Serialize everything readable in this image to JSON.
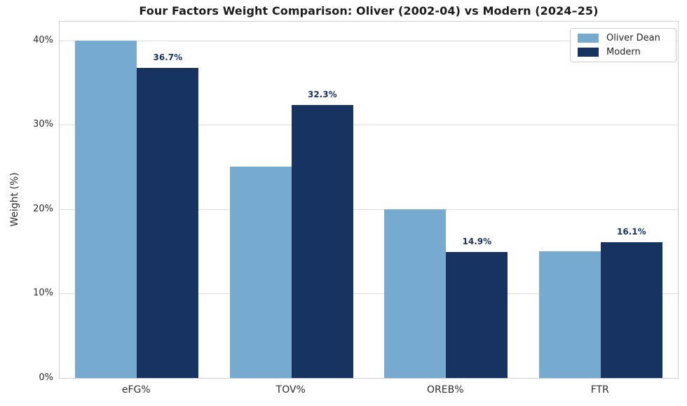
{
  "chart_data": {
    "type": "bar",
    "title": "Four Factors Weight Comparison: Oliver (2002-04) vs Modern (2024–25)",
    "xlabel": "",
    "ylabel": "Weight (%)",
    "categories": [
      "eFG%",
      "TOV%",
      "OREB%",
      "FTR"
    ],
    "series": [
      {
        "name": "Oliver Dean",
        "color": "#76AACE",
        "values": [
          40,
          25,
          20,
          15
        ],
        "data_labels": null
      },
      {
        "name": "Modern",
        "color": "#16345F",
        "values": [
          36.7,
          32.3,
          14.9,
          16.1
        ],
        "data_labels": [
          "36.7%",
          "32.3%",
          "14.9%",
          "16.1%"
        ]
      }
    ],
    "ylim": [
      0,
      42.2
    ],
    "yticks": [
      {
        "value": 0,
        "label": "0%"
      },
      {
        "value": 10,
        "label": "10%"
      },
      {
        "value": 20,
        "label": "20%"
      },
      {
        "value": 30,
        "label": "30%"
      },
      {
        "value": 40,
        "label": "40%"
      }
    ],
    "grid": true,
    "grid_color": "#dcdcdc",
    "legend_position": "upper right",
    "value_label_color": "#16345F",
    "background_color": "#ffffff"
  }
}
